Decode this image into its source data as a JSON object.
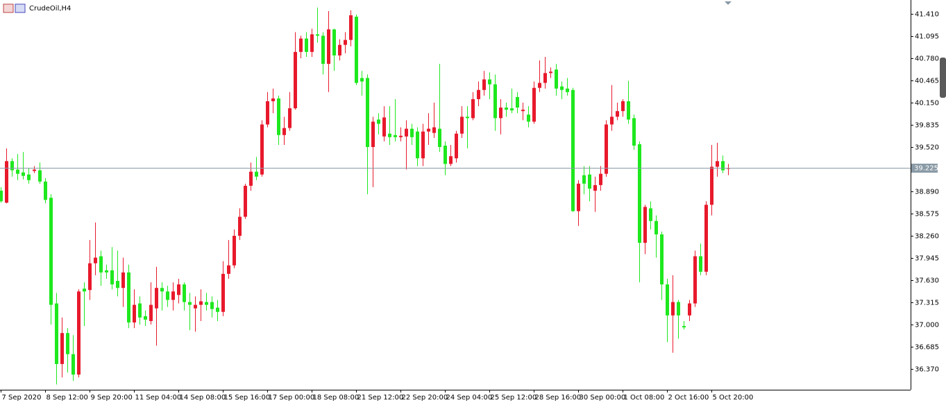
{
  "chart_data": {
    "type": "candlestick",
    "title": "CrudeOil,H4",
    "up_color": "#e8192c",
    "down_color": "#1ee81e",
    "current_price_color": "#8a9aa6",
    "current_price": {
      "value": 39.225,
      "label": "39.225"
    },
    "ylim": [
      36.075,
      41.607
    ],
    "yticks": [
      {
        "value": 36.37,
        "label": "36.370"
      },
      {
        "value": 36.685,
        "label": "36.685"
      },
      {
        "value": 37,
        "label": "37.000"
      },
      {
        "value": 37.315,
        "label": "37.315"
      },
      {
        "value": 37.63,
        "label": "37.630"
      },
      {
        "value": 37.945,
        "label": "37.945"
      },
      {
        "value": 38.26,
        "label": "38.260"
      },
      {
        "value": 38.575,
        "label": "38.575"
      },
      {
        "value": 38.89,
        "label": "38.890"
      },
      {
        "value": 39.52,
        "label": "39.520"
      },
      {
        "value": 39.835,
        "label": "39.835"
      },
      {
        "value": 40.15,
        "label": "40.150"
      },
      {
        "value": 40.465,
        "label": "40.465"
      },
      {
        "value": 40.78,
        "label": "40.780"
      },
      {
        "value": 41.095,
        "label": "41.095"
      },
      {
        "value": 41.41,
        "label": "41.410"
      }
    ],
    "categories": [
      "7 Sep 2020",
      null,
      null,
      null,
      null,
      null,
      null,
      null,
      "8 Sep 12:00",
      null,
      null,
      null,
      null,
      null,
      null,
      null,
      "9 Sep 20:00",
      null,
      null,
      null,
      null,
      null,
      null,
      null,
      "11 Sep 04:00",
      null,
      null,
      null,
      null,
      null,
      null,
      null,
      "14 Sep 08:00",
      null,
      null,
      null,
      null,
      null,
      null,
      null,
      "15 Sep 16:00",
      null,
      null,
      null,
      null,
      null,
      null,
      null,
      "17 Sep 00:00",
      null,
      null,
      null,
      null,
      null,
      null,
      null,
      "18 Sep 08:00",
      null,
      null,
      null,
      null,
      null,
      null,
      null,
      "21 Sep 12:00",
      null,
      null,
      null,
      null,
      null,
      null,
      null,
      "22 Sep 20:00",
      null,
      null,
      null,
      null,
      null,
      null,
      null,
      "24 Sep 04:00",
      null,
      null,
      null,
      null,
      null,
      null,
      null,
      "25 Sep 12:00",
      null,
      null,
      null,
      null,
      null,
      null,
      null,
      "28 Sep 16:00",
      null,
      null,
      null,
      null,
      null,
      null,
      null,
      "30 Sep 00:00",
      null,
      null,
      null,
      null,
      null,
      null,
      null,
      "1 Oct 08:00",
      null,
      null,
      null,
      null,
      null,
      null,
      null,
      "2 Oct 16:00",
      null,
      null,
      null,
      null,
      null,
      null,
      null,
      "5 Oct 20:00",
      null,
      null,
      null
    ],
    "ohlc": [
      [
        38.9,
        38.95,
        38.73,
        38.75
      ],
      [
        38.73,
        39.5,
        38.72,
        39.32
      ],
      [
        39.32,
        39.36,
        39.1,
        39.19
      ],
      [
        39.2,
        39.42,
        39.05,
        39.14
      ],
      [
        39.16,
        39.45,
        39.06,
        39.11
      ],
      [
        39.13,
        39.22,
        39.0,
        39.05
      ],
      [
        39.18,
        39.25,
        39.15,
        39.2
      ],
      [
        39.19,
        39.3,
        39.0,
        39.03
      ],
      [
        39.03,
        39.08,
        38.72,
        38.77
      ],
      [
        38.8,
        38.85,
        37.0,
        37.28
      ],
      [
        37.3,
        37.45,
        36.15,
        36.44
      ],
      [
        36.44,
        37.1,
        36.25,
        36.88
      ],
      [
        36.88,
        36.95,
        36.32,
        36.58
      ],
      [
        36.58,
        36.85,
        36.2,
        36.29
      ],
      [
        36.29,
        37.5,
        36.25,
        37.47
      ],
      [
        37.51,
        37.6,
        36.98,
        37.47
      ],
      [
        37.49,
        38.2,
        37.35,
        37.87
      ],
      [
        37.87,
        38.45,
        37.7,
        37.95
      ],
      [
        37.97,
        38.05,
        37.55,
        37.74
      ],
      [
        37.77,
        37.85,
        37.65,
        37.74
      ],
      [
        37.77,
        38.1,
        37.5,
        37.57
      ],
      [
        37.62,
        38.05,
        37.4,
        37.52
      ],
      [
        37.52,
        37.95,
        37.25,
        37.74
      ],
      [
        37.74,
        37.85,
        36.95,
        37.03
      ],
      [
        37.03,
        37.5,
        36.95,
        37.28
      ],
      [
        37.3,
        37.4,
        37.0,
        37.1
      ],
      [
        37.12,
        37.2,
        36.98,
        37.07
      ],
      [
        37.05,
        37.6,
        37.0,
        37.28
      ],
      [
        37.23,
        37.82,
        36.7,
        37.52
      ],
      [
        37.52,
        37.6,
        37.2,
        37.47
      ],
      [
        37.47,
        37.55,
        37.25,
        37.35
      ],
      [
        37.35,
        37.6,
        37.2,
        37.47
      ],
      [
        37.42,
        37.65,
        37.3,
        37.57
      ],
      [
        37.57,
        37.6,
        37.2,
        37.32
      ],
      [
        37.32,
        37.45,
        36.92,
        37.28
      ],
      [
        37.23,
        37.4,
        36.9,
        37.28
      ],
      [
        37.28,
        37.5,
        37.05,
        37.33
      ],
      [
        37.32,
        37.45,
        37.2,
        37.28
      ],
      [
        37.32,
        37.4,
        37.1,
        37.22
      ],
      [
        37.24,
        37.35,
        37.05,
        37.18
      ],
      [
        37.18,
        37.9,
        37.12,
        37.72
      ],
      [
        37.72,
        38.2,
        37.65,
        37.84
      ],
      [
        37.84,
        38.35,
        37.8,
        38.26
      ],
      [
        38.26,
        38.65,
        38.2,
        38.53
      ],
      [
        38.53,
        39.0,
        38.5,
        38.97
      ],
      [
        38.97,
        39.3,
        38.9,
        39.17
      ],
      [
        39.17,
        39.38,
        39.05,
        39.1
      ],
      [
        39.13,
        39.9,
        39.1,
        39.84
      ],
      [
        39.84,
        40.3,
        39.8,
        40.17
      ],
      [
        40.17,
        40.35,
        40.0,
        40.21
      ],
      [
        40.21,
        40.25,
        39.55,
        39.69
      ],
      [
        39.69,
        39.95,
        39.55,
        39.79
      ],
      [
        39.79,
        40.3,
        39.75,
        40.07
      ],
      [
        40.07,
        41.15,
        40.05,
        40.87
      ],
      [
        40.87,
        41.1,
        40.78,
        41.06
      ],
      [
        41.06,
        41.15,
        40.8,
        40.87
      ],
      [
        40.87,
        41.2,
        40.8,
        41.12
      ],
      [
        41.12,
        41.5,
        41.0,
        41.1
      ],
      [
        41.1,
        41.15,
        40.55,
        40.7
      ],
      [
        40.7,
        41.45,
        40.3,
        41.19
      ],
      [
        41.19,
        41.2,
        40.6,
        40.82
      ],
      [
        40.82,
        41.05,
        40.75,
        40.97
      ],
      [
        40.97,
        41.15,
        40.85,
        41.04
      ],
      [
        41.04,
        41.46,
        40.95,
        41.39
      ],
      [
        41.37,
        41.4,
        40.4,
        40.43
      ],
      [
        40.5,
        40.6,
        40.25,
        40.45
      ],
      [
        40.5,
        40.55,
        38.85,
        39.52
      ],
      [
        39.52,
        39.95,
        38.95,
        39.88
      ],
      [
        39.91,
        40.0,
        39.7,
        39.85
      ],
      [
        39.67,
        40.1,
        39.6,
        39.94
      ],
      [
        39.71,
        40.1,
        39.55,
        39.66
      ],
      [
        39.69,
        40.2,
        39.6,
        39.66
      ],
      [
        39.66,
        39.8,
        39.6,
        39.68
      ],
      [
        39.67,
        39.9,
        39.2,
        39.78
      ],
      [
        39.78,
        39.85,
        39.55,
        39.66
      ],
      [
        39.74,
        39.8,
        39.25,
        39.36
      ],
      [
        39.36,
        39.85,
        39.25,
        39.74
      ],
      [
        39.74,
        40.0,
        39.55,
        39.78
      ],
      [
        39.72,
        40.15,
        39.65,
        39.8
      ],
      [
        39.78,
        40.7,
        39.45,
        39.52
      ],
      [
        39.54,
        39.6,
        39.12,
        39.28
      ],
      [
        39.28,
        39.55,
        39.25,
        39.39
      ],
      [
        39.36,
        39.75,
        39.3,
        39.71
      ],
      [
        39.71,
        40.1,
        39.65,
        39.95
      ],
      [
        39.95,
        40.1,
        39.5,
        39.93
      ],
      [
        39.93,
        40.3,
        39.9,
        40.2
      ],
      [
        40.2,
        40.45,
        40.1,
        40.33
      ],
      [
        40.33,
        40.6,
        40.25,
        40.48
      ],
      [
        40.48,
        40.58,
        40.2,
        40.41
      ],
      [
        40.41,
        40.55,
        39.75,
        39.93
      ],
      [
        39.93,
        40.2,
        39.7,
        40.08
      ],
      [
        40.08,
        40.15,
        39.95,
        40.05
      ],
      [
        40.07,
        40.35,
        40.0,
        40.04
      ],
      [
        40.23,
        40.3,
        40.0,
        40.08
      ],
      [
        40.03,
        40.15,
        39.9,
        40.05
      ],
      [
        39.98,
        40.1,
        39.8,
        39.88
      ],
      [
        39.88,
        40.45,
        39.85,
        40.36
      ],
      [
        40.36,
        40.75,
        40.3,
        40.43
      ],
      [
        40.43,
        40.8,
        40.35,
        40.57
      ],
      [
        40.57,
        40.65,
        40.5,
        40.59
      ],
      [
        40.62,
        40.7,
        40.25,
        40.35
      ],
      [
        40.38,
        40.45,
        40.2,
        40.33
      ],
      [
        40.35,
        40.5,
        40.25,
        40.3
      ],
      [
        40.33,
        40.36,
        38.6,
        38.61
      ],
      [
        38.61,
        39.05,
        38.4,
        39.0
      ],
      [
        39.12,
        39.25,
        38.85,
        39.0
      ],
      [
        39.13,
        39.25,
        38.75,
        38.93
      ],
      [
        38.9,
        39.1,
        38.6,
        38.98
      ],
      [
        38.98,
        39.25,
        38.9,
        39.14
      ],
      [
        39.14,
        39.9,
        39.1,
        39.84
      ],
      [
        39.84,
        40.4,
        39.75,
        39.95
      ],
      [
        39.95,
        40.15,
        39.9,
        40.03
      ],
      [
        40.03,
        40.2,
        39.95,
        40.17
      ],
      [
        40.17,
        40.46,
        39.85,
        39.91
      ],
      [
        39.93,
        39.98,
        39.48,
        39.54
      ],
      [
        39.56,
        39.6,
        37.6,
        38.16
      ],
      [
        38.16,
        38.7,
        38.0,
        38.67
      ],
      [
        38.65,
        38.75,
        38.35,
        38.47
      ],
      [
        38.47,
        38.55,
        37.95,
        38.28
      ],
      [
        38.28,
        38.32,
        37.35,
        37.57
      ],
      [
        37.57,
        37.65,
        36.75,
        37.13
      ],
      [
        37.13,
        37.7,
        36.6,
        37.32
      ],
      [
        37.32,
        37.35,
        36.8,
        37.13
      ],
      [
        36.98,
        37.05,
        36.93,
        36.96
      ],
      [
        37.13,
        37.35,
        37.05,
        37.3
      ],
      [
        37.3,
        38.05,
        37.25,
        37.97
      ],
      [
        37.97,
        38.15,
        37.7,
        37.75
      ],
      [
        37.75,
        38.75,
        37.7,
        38.7
      ],
      [
        38.7,
        39.55,
        38.55,
        39.24
      ],
      [
        39.24,
        39.58,
        39.1,
        39.32
      ],
      [
        39.32,
        39.4,
        39.15,
        39.19
      ],
      [
        39.21,
        39.28,
        39.12,
        39.225
      ]
    ]
  }
}
